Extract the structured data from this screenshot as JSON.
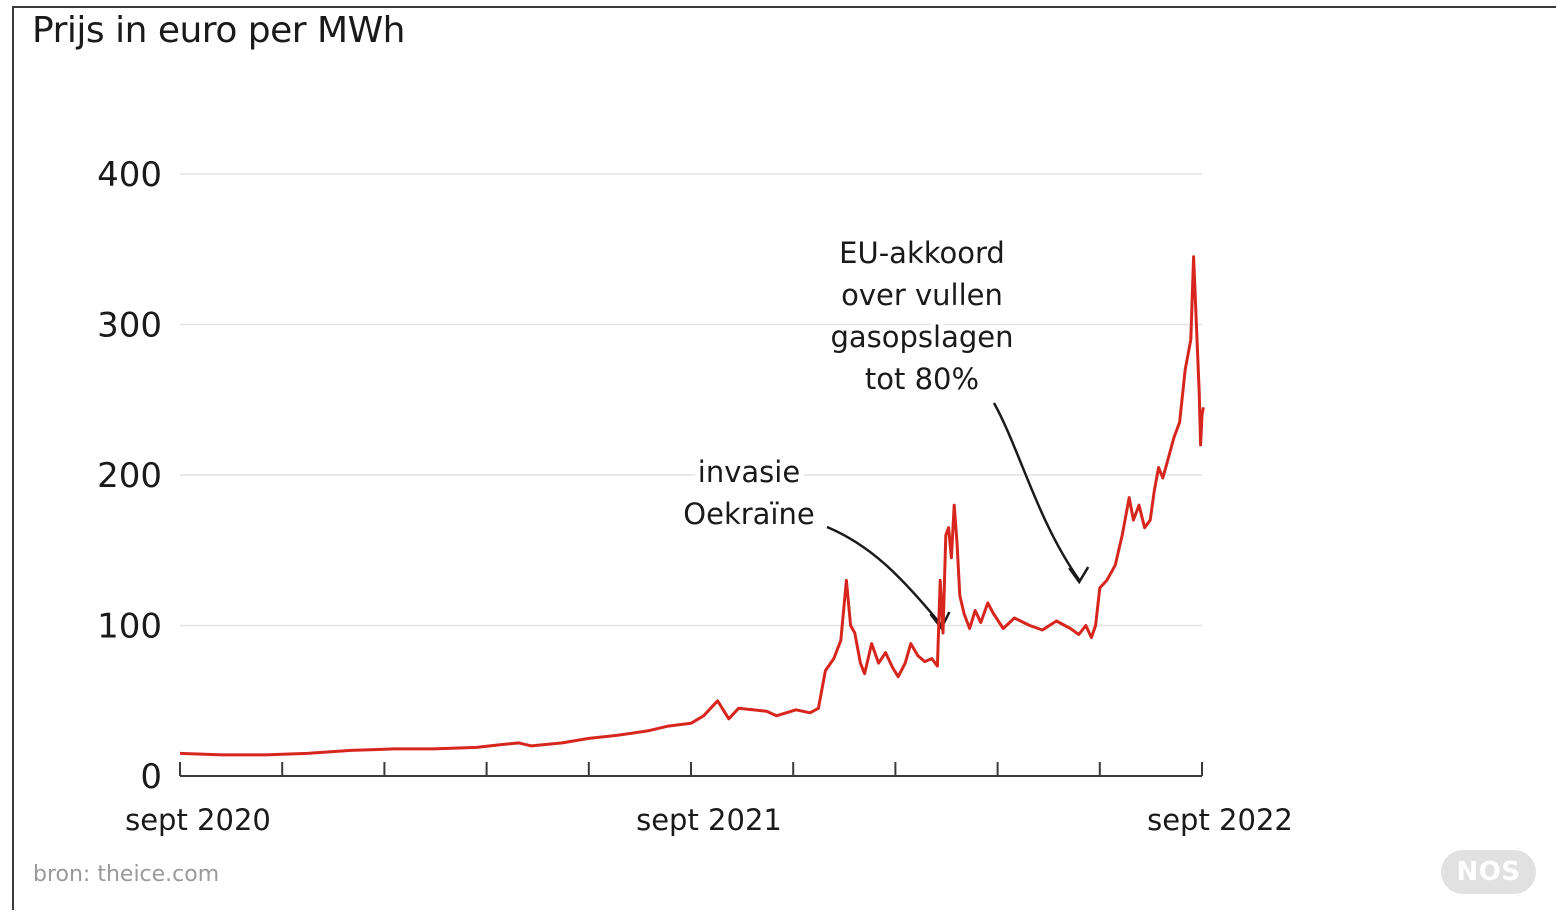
{
  "chart_data": {
    "type": "line",
    "title": "Prijs in euro per MWh",
    "ylim": [
      0,
      400
    ],
    "yticks": [
      0,
      100,
      200,
      300,
      400
    ],
    "xtick_labels": [
      {
        "date": "2020-09-01",
        "label": "sept 2020"
      },
      {
        "date": "2021-09-01",
        "label": "sept 2021"
      },
      {
        "date": "2022-09-01",
        "label": "sept 2022"
      }
    ],
    "x_start": "2020-09-01",
    "x_end": "2022-09-01",
    "grid": true,
    "line_color": "#d7261e",
    "series": [
      {
        "points": [
          [
            "2020-09-01",
            15
          ],
          [
            "2020-10-01",
            14
          ],
          [
            "2020-11-01",
            14
          ],
          [
            "2020-12-01",
            15
          ],
          [
            "2021-01-01",
            17
          ],
          [
            "2021-02-01",
            18
          ],
          [
            "2021-03-01",
            18
          ],
          [
            "2021-04-01",
            19
          ],
          [
            "2021-04-20",
            21
          ],
          [
            "2021-05-01",
            22
          ],
          [
            "2021-05-10",
            20
          ],
          [
            "2021-06-01",
            22
          ],
          [
            "2021-06-20",
            25
          ],
          [
            "2021-07-10",
            27
          ],
          [
            "2021-08-01",
            30
          ],
          [
            "2021-08-15",
            33
          ],
          [
            "2021-09-01",
            35
          ],
          [
            "2021-09-10",
            40
          ],
          [
            "2021-09-20",
            50
          ],
          [
            "2021-09-28",
            38
          ],
          [
            "2021-10-05",
            45
          ],
          [
            "2021-10-15",
            44
          ],
          [
            "2021-10-25",
            43
          ],
          [
            "2021-11-01",
            40
          ],
          [
            "2021-11-15",
            44
          ],
          [
            "2021-11-25",
            42
          ],
          [
            "2021-12-01",
            45
          ],
          [
            "2021-12-06",
            70
          ],
          [
            "2021-12-12",
            78
          ],
          [
            "2021-12-17",
            90
          ],
          [
            "2021-12-21",
            130
          ],
          [
            "2021-12-24",
            100
          ],
          [
            "2021-12-27",
            95
          ],
          [
            "2021-12-31",
            75
          ],
          [
            "2022-01-03",
            68
          ],
          [
            "2022-01-08",
            88
          ],
          [
            "2022-01-13",
            75
          ],
          [
            "2022-01-18",
            82
          ],
          [
            "2022-01-23",
            72
          ],
          [
            "2022-01-27",
            66
          ],
          [
            "2022-02-01",
            75
          ],
          [
            "2022-02-05",
            88
          ],
          [
            "2022-02-10",
            80
          ],
          [
            "2022-02-15",
            76
          ],
          [
            "2022-02-20",
            78
          ],
          [
            "2022-02-24",
            73
          ],
          [
            "2022-02-26",
            130
          ],
          [
            "2022-02-28",
            95
          ],
          [
            "2022-03-02",
            160
          ],
          [
            "2022-03-04",
            165
          ],
          [
            "2022-03-06",
            145
          ],
          [
            "2022-03-08",
            180
          ],
          [
            "2022-03-10",
            155
          ],
          [
            "2022-03-12",
            120
          ],
          [
            "2022-03-15",
            108
          ],
          [
            "2022-03-19",
            98
          ],
          [
            "2022-03-23",
            110
          ],
          [
            "2022-03-27",
            102
          ],
          [
            "2022-04-01",
            115
          ],
          [
            "2022-04-05",
            108
          ],
          [
            "2022-04-12",
            98
          ],
          [
            "2022-04-20",
            105
          ],
          [
            "2022-05-01",
            100
          ],
          [
            "2022-05-10",
            97
          ],
          [
            "2022-05-20",
            103
          ],
          [
            "2022-05-30",
            98
          ],
          [
            "2022-06-05",
            94
          ],
          [
            "2022-06-10",
            100
          ],
          [
            "2022-06-14",
            92
          ],
          [
            "2022-06-17",
            100
          ],
          [
            "2022-06-20",
            125
          ],
          [
            "2022-06-25",
            130
          ],
          [
            "2022-07-01",
            140
          ],
          [
            "2022-07-06",
            160
          ],
          [
            "2022-07-11",
            185
          ],
          [
            "2022-07-14",
            170
          ],
          [
            "2022-07-18",
            180
          ],
          [
            "2022-07-22",
            165
          ],
          [
            "2022-07-26",
            170
          ],
          [
            "2022-07-29",
            190
          ],
          [
            "2022-08-01",
            205
          ],
          [
            "2022-08-04",
            198
          ],
          [
            "2022-08-07",
            208
          ],
          [
            "2022-08-12",
            225
          ],
          [
            "2022-08-16",
            235
          ],
          [
            "2022-08-20",
            270
          ],
          [
            "2022-08-24",
            290
          ],
          [
            "2022-08-26",
            345
          ],
          [
            "2022-08-28",
            300
          ],
          [
            "2022-08-30",
            255
          ],
          [
            "2022-08-31",
            220
          ],
          [
            "2022-09-01",
            240
          ],
          [
            "2022-09-02",
            245
          ]
        ]
      }
    ],
    "annotations": [
      {
        "lines": [
          "invasie",
          "Oekraïne"
        ],
        "date": "2022-02-24"
      },
      {
        "lines": [
          "EU-akkoord",
          "over vullen",
          "gasopslagen",
          "tot 80%"
        ],
        "date": "2022-06-01"
      }
    ]
  },
  "footer": {
    "source": "bron: theice.com",
    "logo": "NOS"
  }
}
